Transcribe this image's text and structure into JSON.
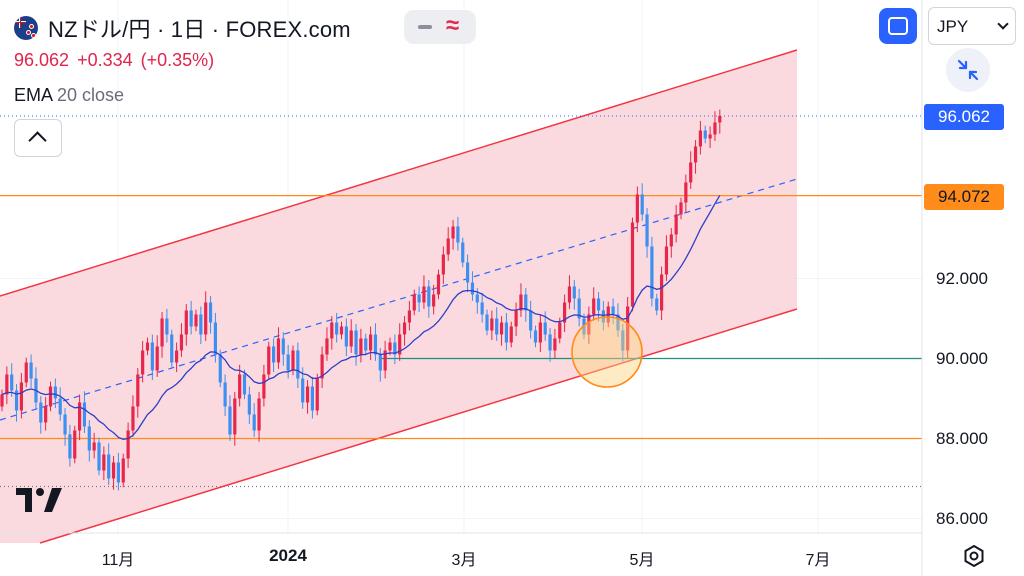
{
  "header": {
    "symbol_title": "NZドル/円 · 1日 · FOREX.com",
    "last_price": "96.062",
    "change": "+0.334",
    "change_pct": "(+0.35%)",
    "indicator_name": "EMA",
    "indicator_params": "20 close"
  },
  "controls": {
    "currency": "JPY"
  },
  "price_tags": {
    "last": "96.062",
    "resistance": "94.072"
  },
  "colors": {
    "up": "#e8254a",
    "down": "#3d8ff0",
    "channel_line": "#f23645",
    "channel_fill": "#f9d3d8",
    "ema": "#2f3ec9",
    "orange_level": "#ff8c1a",
    "green_level": "#1f8f7a",
    "accent": "#2962ff"
  },
  "chart_data": {
    "type": "candlestick",
    "y_axis_ticks": [
      "92.000",
      "90.000",
      "88.000",
      "86.000"
    ],
    "x_axis_ticks": [
      "11月",
      "2024",
      "3月",
      "5月",
      "7月"
    ],
    "ylim": [
      85.55,
      96.65
    ],
    "x_period": [
      "2023-09",
      "2024-07"
    ],
    "horizontal_levels": [
      {
        "value": 94.072,
        "color": "orange"
      },
      {
        "value": 90.0,
        "color": "green"
      },
      {
        "value": 88.0,
        "color": "orange"
      },
      {
        "value": 86.8,
        "style": "dotted"
      }
    ],
    "ema_period": 20,
    "closes": [
      89.1,
      89.6,
      89.2,
      88.7,
      89.4,
      89.9,
      89.5,
      88.9,
      88.4,
      88.8,
      89.3,
      89.0,
      88.6,
      88.1,
      87.5,
      88.2,
      88.9,
      88.3,
      87.7,
      87.9,
      87.2,
      87.6,
      87.0,
      87.4,
      86.9,
      87.5,
      88.2,
      88.8,
      89.6,
      90.2,
      90.4,
      89.7,
      90.3,
      91.0,
      90.6,
      89.9,
      90.2,
      90.6,
      91.2,
      90.8,
      91.1,
      90.6,
      91.4,
      90.9,
      90.1,
      89.4,
      88.8,
      88.1,
      89.0,
      89.6,
      89.1,
      88.6,
      88.2,
      89.0,
      89.6,
      90.3,
      89.9,
      90.5,
      90.1,
      89.7,
      90.2,
      89.5,
      88.9,
      89.3,
      88.7,
      89.5,
      90.1,
      90.5,
      90.9,
      90.6,
      90.8,
      90.3,
      90.7,
      90.1,
      90.5,
      90.2,
      90.6,
      90.1,
      89.7,
      90.2,
      90.4,
      90.1,
      90.6,
      90.9,
      91.2,
      91.6,
      91.4,
      91.8,
      91.3,
      91.6,
      92.1,
      92.6,
      93.0,
      93.3,
      92.9,
      92.4,
      91.9,
      91.6,
      91.4,
      91.1,
      90.7,
      91.0,
      90.6,
      90.9,
      90.4,
      90.8,
      91.2,
      91.6,
      91.2,
      90.7,
      90.4,
      90.9,
      90.6,
      90.2,
      90.5,
      90.9,
      91.4,
      91.8,
      91.5,
      91.0,
      90.6,
      91.1,
      91.5,
      91.2,
      90.9,
      91.3,
      91.1,
      90.7,
      90.2,
      91.3,
      93.4,
      94.1,
      93.6,
      92.8,
      91.5,
      91.2,
      92.1,
      92.8,
      93.1,
      93.6,
      93.9,
      94.4,
      94.9,
      95.3,
      95.7,
      95.5,
      95.6,
      95.9,
      96.062
    ]
  }
}
